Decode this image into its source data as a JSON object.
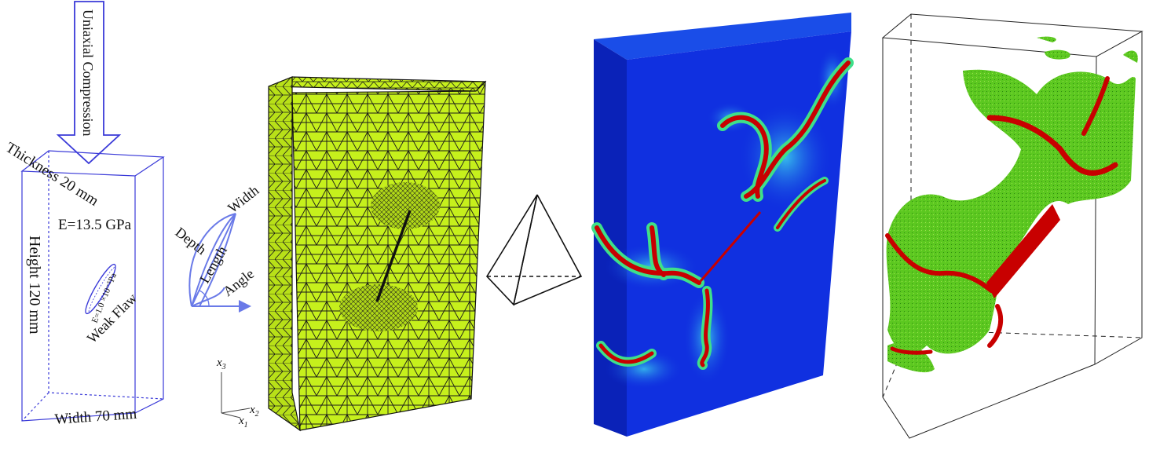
{
  "specimen": {
    "loading": "Uniaxial Compression",
    "thickness": "Thickness 20 mm",
    "height": "Height 120 mm",
    "width": "Width 70 mm",
    "modulus": "E=13.5 GPa",
    "flaw_modulus": "E=1.0 ×10⁻⁵Pa",
    "flaw": "Weak Flaw"
  },
  "flaw_geometry": {
    "width": "Width",
    "depth": "Depth",
    "length": "Length",
    "angle": "Angle"
  },
  "axes": {
    "x3": "x",
    "x3_sub": "3",
    "x2": "x",
    "x2_sub": "2",
    "x1": "x",
    "x1_sub": "1"
  },
  "colors": {
    "specimen_outline": "#3a3ad8",
    "mesh_fill": "#c6f01c",
    "mesh_line": "#1a1a1a",
    "field_blue": "#1030e0",
    "crack_red": "#c80000",
    "crack_green": "#55c820",
    "crack_cyan": "#30d0e8"
  }
}
